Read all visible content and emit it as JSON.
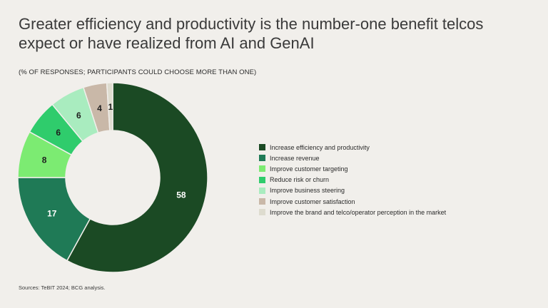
{
  "chart_data": {
    "type": "pie",
    "donut": true,
    "title_lines": [
      "Greater efficiency and productivity is the number-one benefit telcos",
      "expect or have realized from AI and GenAI"
    ],
    "subtitle": "(% OF RESPONSES; PARTICIPANTS COULD CHOOSE MORE THAN ONE)",
    "slices": [
      {
        "label": "Increase efficiency and productivity",
        "value": 58,
        "color": "#1b4a24",
        "text_color": "#ffffff"
      },
      {
        "label": "Increase revenue",
        "value": 17,
        "color": "#1f7a56",
        "text_color": "#ffffff"
      },
      {
        "label": "Improve customer targeting",
        "value": 8,
        "color": "#7ceb72",
        "text_color": "#1e1e1e"
      },
      {
        "label": "Reduce risk or churn",
        "value": 6,
        "color": "#2fcc6c",
        "text_color": "#1e1e1e"
      },
      {
        "label": "Improve business steering",
        "value": 6,
        "color": "#a9ecbf",
        "text_color": "#1e1e1e"
      },
      {
        "label": "Improve customer satisfaction",
        "value": 4,
        "color": "#c9b8a8",
        "text_color": "#1e1e1e"
      },
      {
        "label": "Improve the brand and telco/operator perception in the market",
        "value": 1,
        "color": "#dedccf",
        "text_color": "#1e1e1e"
      }
    ],
    "legend_position": "right"
  },
  "source": "Sources: TeBIT 2024; BCG analysis."
}
